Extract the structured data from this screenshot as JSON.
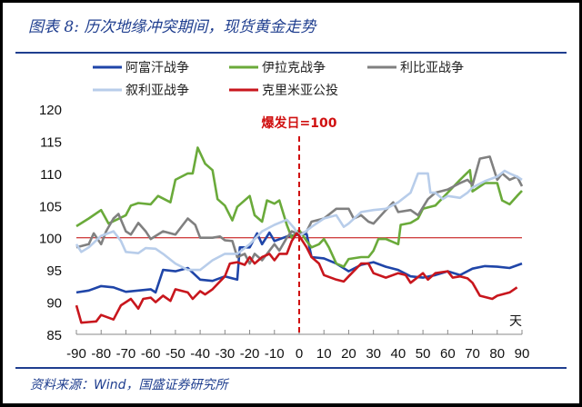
{
  "title": "图表 8:  历次地缘冲突期间，现货黄金走势",
  "source": "资料来源：Wind，国盛证券研究所",
  "chart_data": {
    "type": "line",
    "title": "图表 8:  历次地缘冲突期间，现货黄金走势",
    "xlabel": "天",
    "ylabel": "",
    "xlim": [
      -90,
      90
    ],
    "ylim": [
      85,
      120
    ],
    "xticks": [
      -90,
      -80,
      -70,
      -60,
      -50,
      -40,
      -30,
      -20,
      -10,
      0,
      10,
      20,
      30,
      40,
      50,
      60,
      70,
      80,
      90
    ],
    "yticks": [
      85,
      90,
      95,
      100,
      105,
      110,
      115,
      120
    ],
    "grid": false,
    "legend_placement": "top",
    "baseline": {
      "value": 100,
      "color": "#c00000"
    },
    "annotation": {
      "text": "爆发日=100",
      "x": 0,
      "color": "#d01010"
    },
    "series": [
      {
        "name": "阿富汗战争",
        "color": "#1f45a8",
        "points": [
          [
            -90,
            91.5
          ],
          [
            -85,
            91.8
          ],
          [
            -80,
            92.5
          ],
          [
            -75,
            92.3
          ],
          [
            -70,
            91.6
          ],
          [
            -65,
            91.8
          ],
          [
            -60,
            92
          ],
          [
            -58,
            91.5
          ],
          [
            -55,
            95
          ],
          [
            -50,
            94.8
          ],
          [
            -45,
            95.3
          ],
          [
            -40,
            93.5
          ],
          [
            -35,
            93.3
          ],
          [
            -30,
            94
          ],
          [
            -25,
            93.5
          ],
          [
            -24,
            98.5
          ],
          [
            -20,
            98.5
          ],
          [
            -17,
            100.7
          ],
          [
            -15,
            99
          ],
          [
            -12,
            100.8
          ],
          [
            -10,
            99.5
          ],
          [
            -5,
            100.2
          ],
          [
            0,
            100.5
          ],
          [
            3,
            100.6
          ],
          [
            5,
            97
          ],
          [
            10,
            96.8
          ],
          [
            15,
            96
          ],
          [
            20,
            94.8
          ],
          [
            25,
            95.8
          ],
          [
            30,
            96.2
          ],
          [
            35,
            95.5
          ],
          [
            40,
            95
          ],
          [
            45,
            94
          ],
          [
            50,
            93.8
          ],
          [
            55,
            94.2
          ],
          [
            60,
            94.8
          ],
          [
            65,
            94.2
          ],
          [
            70,
            95.2
          ],
          [
            75,
            95.6
          ],
          [
            80,
            95.5
          ],
          [
            85,
            95.3
          ],
          [
            90,
            96
          ]
        ]
      },
      {
        "name": "伊拉克战争",
        "color": "#6aaa3a",
        "points": [
          [
            -90,
            101.8
          ],
          [
            -85,
            103
          ],
          [
            -80,
            104.3
          ],
          [
            -77,
            102.2
          ],
          [
            -70,
            103.5
          ],
          [
            -68,
            105
          ],
          [
            -65,
            105.4
          ],
          [
            -60,
            105.2
          ],
          [
            -57,
            106.5
          ],
          [
            -52,
            105.5
          ],
          [
            -50,
            109
          ],
          [
            -45,
            110
          ],
          [
            -43,
            110
          ],
          [
            -41,
            114
          ],
          [
            -38,
            111.5
          ],
          [
            -35,
            110.5
          ],
          [
            -33,
            106
          ],
          [
            -30,
            105
          ],
          [
            -27,
            102.7
          ],
          [
            -25,
            104.8
          ],
          [
            -20,
            106.5
          ],
          [
            -18,
            103.5
          ],
          [
            -15,
            102.5
          ],
          [
            -13,
            105.8
          ],
          [
            -10,
            105.3
          ],
          [
            -8,
            105.8
          ],
          [
            -5,
            102
          ],
          [
            -3,
            100
          ],
          [
            0,
            101.2
          ],
          [
            3,
            99.5
          ],
          [
            5,
            98.5
          ],
          [
            8,
            99
          ],
          [
            10,
            99.8
          ],
          [
            12,
            98.5
          ],
          [
            15,
            96
          ],
          [
            18,
            95.5
          ],
          [
            20,
            96.7
          ],
          [
            25,
            97
          ],
          [
            28,
            97
          ],
          [
            30,
            98
          ],
          [
            32,
            99.8
          ],
          [
            35,
            99.8
          ],
          [
            40,
            99
          ],
          [
            41,
            102
          ],
          [
            45,
            102.3
          ],
          [
            48,
            103
          ],
          [
            50,
            104.5
          ],
          [
            55,
            105
          ],
          [
            60,
            107
          ],
          [
            65,
            109
          ],
          [
            69,
            110.5
          ],
          [
            70,
            107.2
          ],
          [
            75,
            108.5
          ],
          [
            80,
            108.5
          ],
          [
            82,
            105.8
          ],
          [
            85,
            105.2
          ],
          [
            88,
            106.5
          ],
          [
            90,
            107.3
          ]
        ]
      },
      {
        "name": "利比亚战争",
        "color": "#808080",
        "points": [
          [
            -90,
            98.5
          ],
          [
            -85,
            99
          ],
          [
            -83,
            100.7
          ],
          [
            -80,
            99
          ],
          [
            -78,
            101
          ],
          [
            -75,
            103
          ],
          [
            -73,
            103.7
          ],
          [
            -70,
            101
          ],
          [
            -68,
            100.5
          ],
          [
            -65,
            102.3
          ],
          [
            -62,
            101
          ],
          [
            -60,
            99.8
          ],
          [
            -55,
            101
          ],
          [
            -50,
            100.5
          ],
          [
            -45,
            103
          ],
          [
            -42,
            102
          ],
          [
            -40,
            100
          ],
          [
            -35,
            100
          ],
          [
            -32,
            100.2
          ],
          [
            -30,
            99.6
          ],
          [
            -27,
            99.5
          ],
          [
            -25,
            97
          ],
          [
            -22,
            97.5
          ],
          [
            -20,
            96
          ],
          [
            -18,
            97.5
          ],
          [
            -15,
            96.5
          ],
          [
            -10,
            99
          ],
          [
            -8,
            98
          ],
          [
            -5,
            100
          ],
          [
            -3,
            101
          ],
          [
            0,
            100.5
          ],
          [
            3,
            101
          ],
          [
            5,
            102.5
          ],
          [
            10,
            103
          ],
          [
            15,
            104.5
          ],
          [
            20,
            104.5
          ],
          [
            22,
            103
          ],
          [
            25,
            103.5
          ],
          [
            28,
            102.5
          ],
          [
            30,
            102.2
          ],
          [
            35,
            104.3
          ],
          [
            38,
            105.5
          ],
          [
            40,
            104
          ],
          [
            45,
            104.3
          ],
          [
            48,
            103.5
          ],
          [
            52,
            106
          ],
          [
            55,
            107
          ],
          [
            60,
            107.5
          ],
          [
            65,
            108.5
          ],
          [
            68,
            109
          ],
          [
            70,
            108.2
          ],
          [
            73,
            112.3
          ],
          [
            77,
            112.6
          ],
          [
            80,
            109
          ],
          [
            82,
            110
          ],
          [
            85,
            109
          ],
          [
            88,
            109.5
          ],
          [
            90,
            108
          ]
        ]
      },
      {
        "name": "叙利亚战争",
        "color": "#b8cdea",
        "points": [
          [
            -90,
            99
          ],
          [
            -88,
            97.8
          ],
          [
            -85,
            98.5
          ],
          [
            -80,
            100.3
          ],
          [
            -75,
            101
          ],
          [
            -72,
            99.5
          ],
          [
            -70,
            97.8
          ],
          [
            -65,
            97.6
          ],
          [
            -62,
            98.4
          ],
          [
            -58,
            98.3
          ],
          [
            -55,
            97.5
          ],
          [
            -50,
            96
          ],
          [
            -45,
            95
          ],
          [
            -40,
            95
          ],
          [
            -35,
            96.5
          ],
          [
            -30,
            97.5
          ],
          [
            -25,
            97.5
          ],
          [
            -20,
            99
          ],
          [
            -15,
            101
          ],
          [
            -10,
            102
          ],
          [
            -5,
            102.8
          ],
          [
            -2,
            101.5
          ],
          [
            0,
            100.2
          ],
          [
            5,
            101.7
          ],
          [
            10,
            103
          ],
          [
            15,
            103.5
          ],
          [
            18,
            101.7
          ],
          [
            20,
            102.2
          ],
          [
            25,
            104
          ],
          [
            30,
            104.3
          ],
          [
            35,
            104.5
          ],
          [
            40,
            105.5
          ],
          [
            45,
            107
          ],
          [
            48,
            110
          ],
          [
            52,
            110
          ],
          [
            53,
            107
          ],
          [
            55,
            107
          ],
          [
            58,
            106
          ],
          [
            60,
            106.5
          ],
          [
            65,
            106.2
          ],
          [
            68,
            107
          ],
          [
            70,
            107.8
          ],
          [
            75,
            108.8
          ],
          [
            80,
            109.5
          ],
          [
            83,
            110.4
          ],
          [
            85,
            110
          ],
          [
            88,
            109.5
          ],
          [
            90,
            109
          ]
        ]
      },
      {
        "name": "克里米亚公投",
        "color": "#c8161d",
        "points": [
          [
            -90,
            89.5
          ],
          [
            -88,
            86.8
          ],
          [
            -85,
            86.9
          ],
          [
            -82,
            87
          ],
          [
            -80,
            88
          ],
          [
            -75,
            87.3
          ],
          [
            -72,
            89.5
          ],
          [
            -68,
            90.5
          ],
          [
            -65,
            89
          ],
          [
            -63,
            90.5
          ],
          [
            -60,
            90.7
          ],
          [
            -58,
            90
          ],
          [
            -55,
            91
          ],
          [
            -52,
            90.2
          ],
          [
            -50,
            92
          ],
          [
            -45,
            91.5
          ],
          [
            -43,
            90.5
          ],
          [
            -40,
            91.7
          ],
          [
            -38,
            91.2
          ],
          [
            -35,
            92
          ],
          [
            -30,
            94
          ],
          [
            -28,
            96
          ],
          [
            -25,
            96.2
          ],
          [
            -22,
            95.8
          ],
          [
            -20,
            97
          ],
          [
            -18,
            96
          ],
          [
            -15,
            97
          ],
          [
            -12,
            97.5
          ],
          [
            -10,
            96.5
          ],
          [
            -8,
            97.5
          ],
          [
            -5,
            97.5
          ],
          [
            -3,
            99.5
          ],
          [
            -1,
            100.7
          ],
          [
            0,
            100.3
          ],
          [
            3,
            98.5
          ],
          [
            5,
            97
          ],
          [
            8,
            96
          ],
          [
            10,
            94.2
          ],
          [
            15,
            93.5
          ],
          [
            18,
            93.2
          ],
          [
            20,
            94
          ],
          [
            25,
            96
          ],
          [
            28,
            96
          ],
          [
            30,
            94.5
          ],
          [
            35,
            93.8
          ],
          [
            40,
            94.5
          ],
          [
            43,
            94.2
          ],
          [
            45,
            93
          ],
          [
            50,
            94.5
          ],
          [
            52,
            93.5
          ],
          [
            55,
            94.5
          ],
          [
            60,
            94.8
          ],
          [
            62,
            93.8
          ],
          [
            65,
            94
          ],
          [
            68,
            93.7
          ],
          [
            70,
            93
          ],
          [
            73,
            91
          ],
          [
            78,
            90.5
          ],
          [
            80,
            91
          ],
          [
            85,
            91.5
          ],
          [
            88,
            92.3
          ]
        ]
      }
    ]
  }
}
